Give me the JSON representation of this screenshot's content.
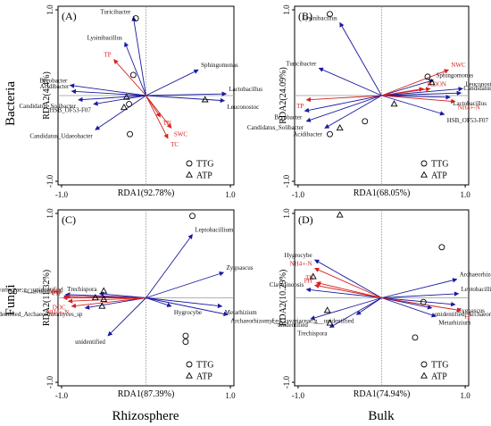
{
  "row_labels": [
    "Bacteria",
    "Fungi"
  ],
  "col_labels": [
    "Rhizosphere",
    "Bulk"
  ],
  "colors": {
    "species_arrow": "#1a1aa0",
    "env_arrow": "#d62020",
    "species_text": "#111111",
    "env_text": "#d62020",
    "axis": "#000000",
    "zero_line": "#999999"
  },
  "chart_data": [
    {
      "type": "scatter",
      "panel": "(A)",
      "xlabel": "RDA1(92.78%)",
      "ylabel": "RDA2(4.4%)",
      "xlim": [
        -1.0,
        1.0
      ],
      "ylim": [
        -1.0,
        1.0
      ],
      "x_ticks": [
        "-1.0",
        "1.0"
      ],
      "y_ticks": [
        "1.0",
        "-1.0"
      ],
      "legend": [
        {
          "symbol": "circle",
          "label": "TTG"
        },
        {
          "symbol": "triangle",
          "label": "ATP"
        }
      ],
      "legend_position": "bottom-right",
      "species_arrows": [
        {
          "label": "Turicibacter",
          "x": -0.15,
          "y": 0.92
        },
        {
          "label": "Lysinibacillus",
          "x": -0.25,
          "y": 0.62
        },
        {
          "label": "Sphingomonas",
          "x": 0.62,
          "y": 0.3
        },
        {
          "label": "Bryobacter",
          "x": -0.9,
          "y": 0.12
        },
        {
          "label": "Acidibacter",
          "x": -0.88,
          "y": 0.05
        },
        {
          "label": "Candidatus_Solibacter",
          "x": -0.8,
          "y": -0.05
        },
        {
          "label": "HSB_OF53-F07",
          "x": -0.62,
          "y": -0.1
        },
        {
          "label": "Lactobacillus",
          "x": 0.95,
          "y": 0.02
        },
        {
          "label": "Leuconostoc",
          "x": 0.93,
          "y": -0.06
        },
        {
          "label": "Candidatus_Udaeobacter",
          "x": -0.6,
          "y": -0.4
        }
      ],
      "env_arrows": [
        {
          "label": "TP",
          "x": -0.38,
          "y": 0.42
        },
        {
          "label": "TN",
          "x": 0.17,
          "y": -0.25
        },
        {
          "label": "SWC",
          "x": 0.3,
          "y": -0.38
        },
        {
          "label": "TC",
          "x": 0.26,
          "y": -0.5
        }
      ],
      "TTG": [
        {
          "x": -0.12,
          "y": 0.9
        },
        {
          "x": -0.15,
          "y": 0.24
        },
        {
          "x": -0.2,
          "y": -0.1
        },
        {
          "x": -0.19,
          "y": -0.45
        }
      ],
      "ATP": [
        {
          "x": -0.26,
          "y": -0.14
        },
        {
          "x": -0.23,
          "y": -0.02
        },
        {
          "x": 0.7,
          "y": -0.05
        }
      ]
    },
    {
      "type": "scatter",
      "panel": "(B)",
      "xlabel": "RDA1(68.05%)",
      "ylabel": "RDA2(24.09%)",
      "xlim": [
        -1.0,
        1.0
      ],
      "ylim": [
        -1.0,
        1.0
      ],
      "x_ticks": [
        "-1.0",
        "1.0"
      ],
      "y_ticks": [
        "1.0",
        "-1.0"
      ],
      "legend": [
        {
          "symbol": "circle",
          "label": "TTG"
        },
        {
          "symbol": "triangle",
          "label": "ATP"
        }
      ],
      "legend_position": "bottom-right",
      "species_arrows": [
        {
          "label": "Lysinibacillus",
          "x": -0.5,
          "y": 0.85
        },
        {
          "label": "Turicibacter",
          "x": -0.75,
          "y": 0.32
        },
        {
          "label": "Bryobacter",
          "x": -0.92,
          "y": -0.18
        },
        {
          "label": "Candidatus_Solibacter",
          "x": -0.9,
          "y": -0.3
        },
        {
          "label": "Acidibacter",
          "x": -0.68,
          "y": -0.38
        },
        {
          "label": "Sphingomonas",
          "x": 0.62,
          "y": 0.18
        },
        {
          "label": "Leuconostoc",
          "x": 0.97,
          "y": 0.08
        },
        {
          "label": "Candidatus_Udaeobacter",
          "x": 0.95,
          "y": 0.03
        },
        {
          "label": "Lactobacillus",
          "x": 0.82,
          "y": -0.02
        },
        {
          "label": "HSB_OF53-F07",
          "x": 0.75,
          "y": -0.22
        }
      ],
      "env_arrows": [
        {
          "label": "NWC",
          "x": 0.8,
          "y": 0.3
        },
        {
          "label": "TC",
          "x": 0.5,
          "y": 0.08
        },
        {
          "label": "DON",
          "x": 0.58,
          "y": 0.08
        },
        {
          "label": "NH4+-N",
          "x": 0.88,
          "y": -0.07
        },
        {
          "label": "TP",
          "x": -0.9,
          "y": -0.05
        }
      ],
      "TTG": [
        {
          "x": -0.62,
          "y": 0.95
        },
        {
          "x": 0.55,
          "y": 0.22
        },
        {
          "x": -0.2,
          "y": -0.3
        },
        {
          "x": -0.62,
          "y": -0.45
        }
      ],
      "ATP": [
        {
          "x": 0.6,
          "y": 0.15
        },
        {
          "x": 0.15,
          "y": -0.1
        },
        {
          "x": -0.5,
          "y": -0.38
        }
      ]
    },
    {
      "type": "scatter",
      "panel": "(C)",
      "xlabel": "RDA1(87.39%)",
      "ylabel": "RDA2(11.32%)",
      "xlim": [
        -1.0,
        1.0
      ],
      "ylim": [
        -1.0,
        1.0
      ],
      "x_ticks": [
        "-1.0",
        "1.0"
      ],
      "y_ticks": [
        "1.0",
        "-1.0"
      ],
      "legend": [
        {
          "symbol": "circle",
          "label": "TTG"
        },
        {
          "symbol": "triangle",
          "label": "ATP"
        }
      ],
      "legend_position": "bottom-right",
      "species_arrows": [
        {
          "label": "Leptobacillium",
          "x": 0.55,
          "y": 0.75
        },
        {
          "label": "Zygoascus",
          "x": 0.92,
          "y": 0.3
        },
        {
          "label": "Metarhizium",
          "x": 0.9,
          "y": -0.1
        },
        {
          "label": "Archaeorhizomyces",
          "x": 0.97,
          "y": -0.2
        },
        {
          "label": "Hygrocybe",
          "x": 0.3,
          "y": -0.1
        },
        {
          "label": "f__Clavariaceae;g__unidentified",
          "x": -0.95,
          "y": 0.04
        },
        {
          "label": "Clavulinopsis",
          "x": -0.97,
          "y": 0.02
        },
        {
          "label": "Trechispora",
          "x": -0.55,
          "y": 0.05
        },
        {
          "label": "unidentified_Archaeorhizomyces_sp",
          "x": -0.72,
          "y": -0.12
        },
        {
          "label": "unidentified",
          "x": -0.45,
          "y": -0.45
        }
      ],
      "env_arrows": [
        {
          "label": "NWC",
          "x": -0.95,
          "y": 0.02
        },
        {
          "label": "PH",
          "x": -0.98,
          "y": 0.0
        },
        {
          "label": "DOC",
          "x": -0.92,
          "y": -0.04
        },
        {
          "label": "NH4+-N",
          "x": -0.88,
          "y": -0.1
        }
      ],
      "TTG": [
        {
          "x": 0.55,
          "y": 0.97
        },
        {
          "x": 0.47,
          "y": -0.45
        },
        {
          "x": 0.47,
          "y": -0.52
        }
      ],
      "ATP": [
        {
          "x": -0.5,
          "y": 0.08
        },
        {
          "x": -0.5,
          "y": -0.02
        },
        {
          "x": -0.52,
          "y": -0.1
        },
        {
          "x": -0.6,
          "y": 0.0
        }
      ]
    },
    {
      "type": "scatter",
      "panel": "(D)",
      "xlabel": "RDA1(74.94%)",
      "ylabel": "RDA2(10.29%)",
      "xlim": [
        -1.0,
        1.0
      ],
      "ylim": [
        -1.0,
        1.0
      ],
      "x_ticks": [
        "-1.0",
        "1.0"
      ],
      "y_ticks": [
        "1.0",
        "-1.0"
      ],
      "legend": [
        {
          "symbol": "circle",
          "label": "TTG"
        },
        {
          "symbol": "triangle",
          "label": "ATP"
        }
      ],
      "legend_position": "bottom-right",
      "species_arrows": [
        {
          "label": "Hygrocybe",
          "x": -0.8,
          "y": 0.45
        },
        {
          "label": "Clavulinopsis",
          "x": -0.9,
          "y": 0.1
        },
        {
          "label": "Archaeorhizomyces",
          "x": 0.9,
          "y": 0.22
        },
        {
          "label": "Leptobacillium",
          "x": 0.92,
          "y": 0.05
        },
        {
          "label": "Zygoascus",
          "x": 0.88,
          "y": -0.08
        },
        {
          "label": "unidentified_Archaeorhizomyces_sp",
          "x": 0.6,
          "y": -0.12
        },
        {
          "label": "Metarhizium",
          "x": 0.65,
          "y": -0.22
        },
        {
          "label": "f__Clavariaceae;g__unidentified",
          "x": -0.3,
          "y": -0.2
        },
        {
          "label": "unidentified",
          "x": -0.85,
          "y": -0.25
        },
        {
          "label": "Trechispora",
          "x": -0.62,
          "y": -0.35
        }
      ],
      "env_arrows": [
        {
          "label": "NH4+-N",
          "x": -0.8,
          "y": 0.35
        },
        {
          "label": "PH",
          "x": -0.8,
          "y": 0.15
        },
        {
          "label": "TN",
          "x": -0.78,
          "y": 0.18
        },
        {
          "label": "TP",
          "x": 0.95,
          "y": -0.15
        }
      ],
      "TTG": [
        {
          "x": 0.72,
          "y": 0.6
        },
        {
          "x": 0.5,
          "y": -0.05
        },
        {
          "x": 0.4,
          "y": -0.47
        }
      ],
      "ATP": [
        {
          "x": -0.5,
          "y": 0.98
        },
        {
          "x": -0.82,
          "y": 0.25
        },
        {
          "x": -0.65,
          "y": -0.15
        },
        {
          "x": -0.62,
          "y": -0.3
        }
      ]
    }
  ]
}
